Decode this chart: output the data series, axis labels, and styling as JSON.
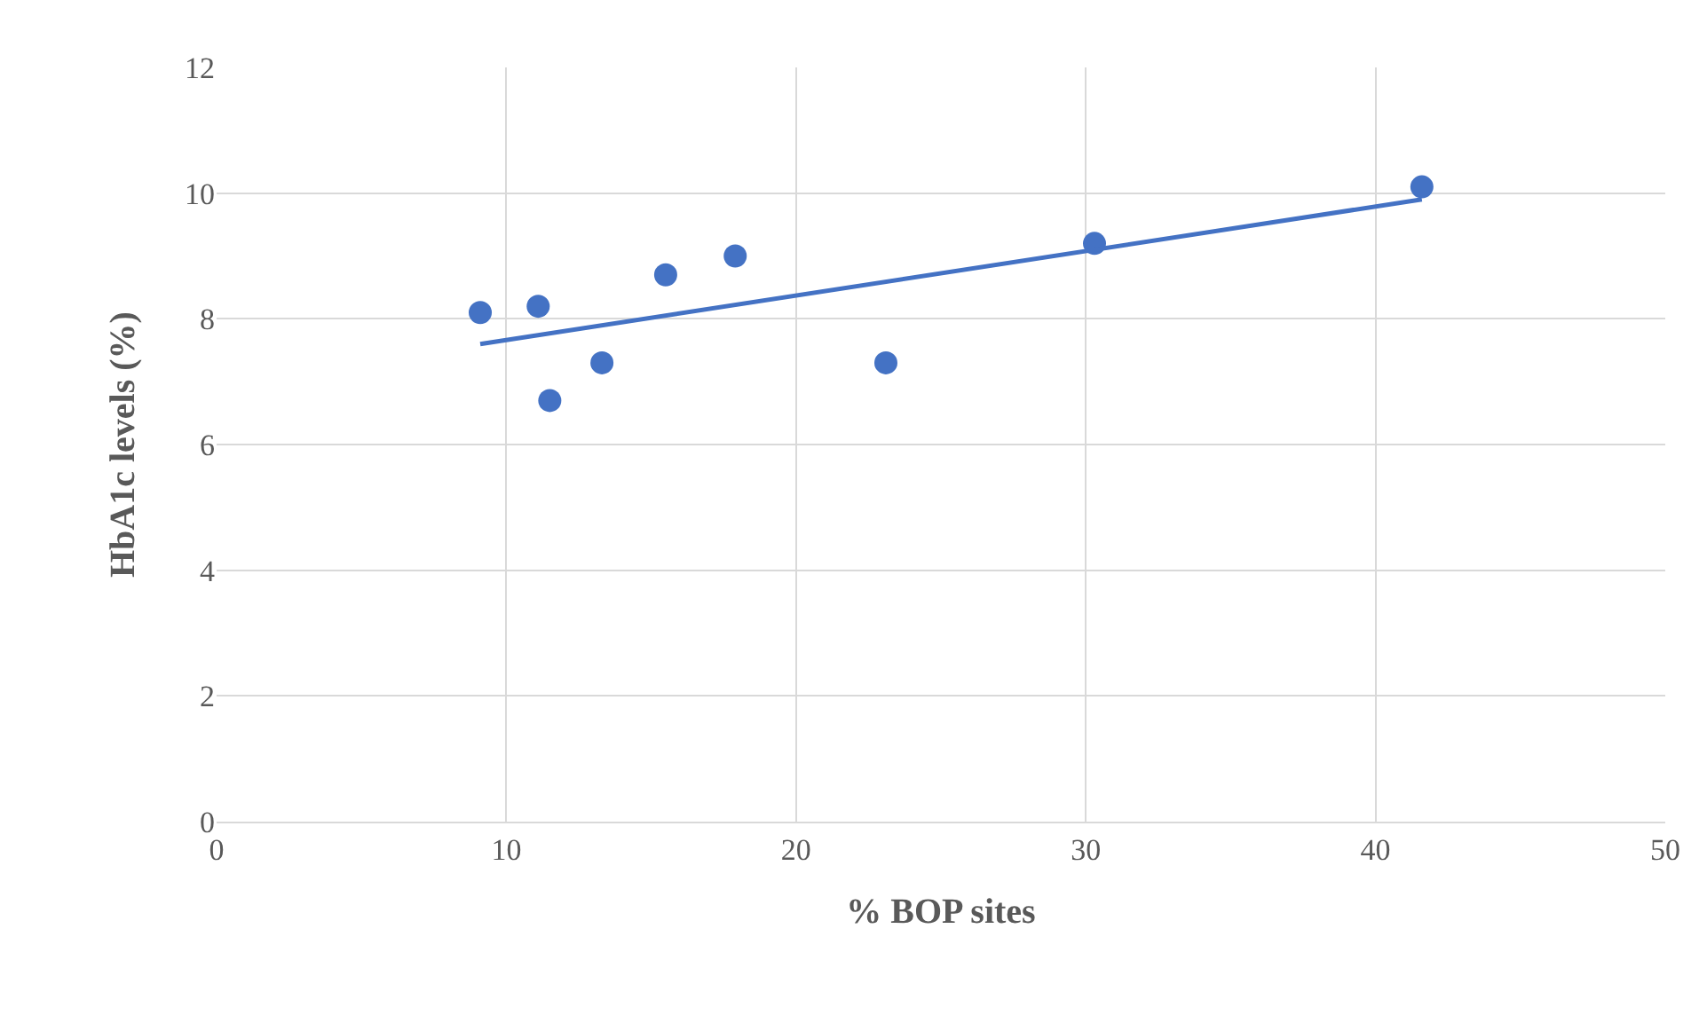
{
  "chart_data": {
    "type": "scatter",
    "xlabel": "% BOP sites",
    "ylabel": "HbA1c levels (%)",
    "xlim": [
      0,
      50
    ],
    "xticks": [
      0,
      10,
      20,
      30,
      40,
      50
    ],
    "ylim": [
      0,
      12
    ],
    "yticks": [
      0,
      2,
      4,
      6,
      8,
      10,
      12
    ],
    "grid": true,
    "legend": false,
    "series": [
      {
        "marker": "circle",
        "color": "#4472c4",
        "x": [
          9.1,
          11.1,
          11.5,
          13.3,
          15.5,
          17.9,
          23.1,
          30.3,
          41.6
        ],
        "values": [
          8.1,
          8.2,
          6.7,
          7.3,
          8.7,
          9.0,
          7.3,
          9.2,
          10.1
        ]
      },
      {
        "type": "line",
        "marker": "none",
        "color": "#4472c4",
        "line_style": "solid",
        "x": [
          9.1,
          41.6
        ],
        "values": [
          7.6,
          9.9
        ]
      }
    ]
  }
}
